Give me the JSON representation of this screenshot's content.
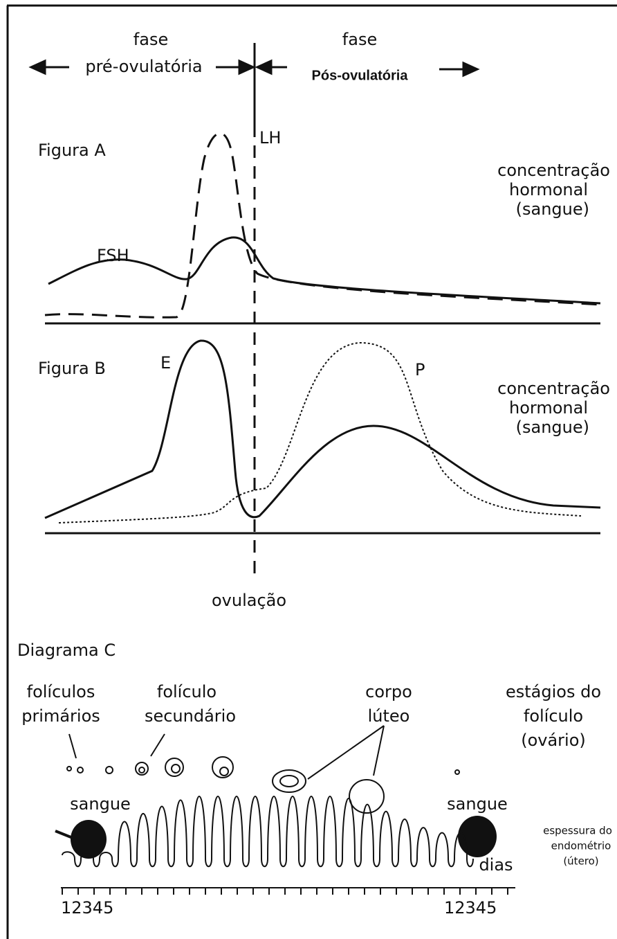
{
  "phases": {
    "pre": {
      "label": "fase",
      "name": "pré-ovulatória"
    },
    "post": {
      "label": "fase",
      "name": "Pós-ovulatória"
    }
  },
  "figure_a": {
    "title": "Figura A",
    "lh": "LH",
    "fsh": "FSH",
    "axis_label": [
      "concentração",
      "hormonal",
      "(sangue)"
    ]
  },
  "figure_b": {
    "title": "Figura B",
    "e": "E",
    "p": "P",
    "axis_label": [
      "concentração",
      "hormonal",
      "(sangue)"
    ]
  },
  "ovulation": "ovulação",
  "diagram_c": {
    "title": "Diagrama C",
    "primary_follicles": [
      "folículos",
      "primários"
    ],
    "secondary_follicle": [
      "folículo",
      "secundário"
    ],
    "corpus_luteum": [
      "corpo",
      "lúteo"
    ],
    "stages": [
      "estágios do",
      "folículo",
      "(ovário)"
    ],
    "blood_start": "sangue",
    "blood_end": "sangue",
    "endometrium": [
      "espessura do",
      "endométrio",
      "(útero)"
    ],
    "days": "dias",
    "days_start": "12345",
    "days_end": "12345"
  }
}
